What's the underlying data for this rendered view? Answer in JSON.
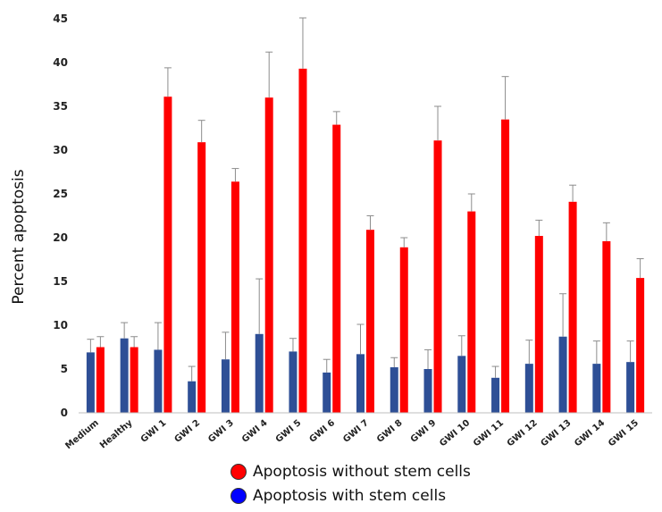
{
  "chart_data": {
    "type": "bar",
    "ylabel": "Percent apoptosis",
    "ylim": [
      0,
      45
    ],
    "yticks": [
      0,
      5,
      10,
      15,
      20,
      25,
      30,
      35,
      40,
      45
    ],
    "grid": false,
    "legend_position": "bottom",
    "categories": [
      "Medium",
      "Healthy",
      "GWI 1",
      "GWI 2",
      "GWI 3",
      "GWI 4",
      "GWI 5",
      "GWI 6",
      "GWI 7",
      "GWI 8",
      "GWI 9",
      "GWI 10",
      "GWI 11",
      "GWI 12",
      "GWI 13",
      "GWI 14",
      "GWI 15"
    ],
    "series": [
      {
        "name": "Apoptosis with stem cells",
        "color": "#2e4f96",
        "values": [
          6.9,
          8.5,
          7.2,
          3.6,
          6.1,
          9.0,
          7.0,
          4.6,
          6.7,
          5.2,
          5.0,
          6.5,
          4.0,
          5.6,
          8.7,
          5.6,
          5.8
        ],
        "errors": [
          1.5,
          1.8,
          3.1,
          1.7,
          3.1,
          6.3,
          1.5,
          1.5,
          3.4,
          1.1,
          2.2,
          2.3,
          1.3,
          2.7,
          4.9,
          2.6,
          2.4
        ]
      },
      {
        "name": "Apoptosis without stem cells",
        "color": "#ff0000",
        "values": [
          7.5,
          7.5,
          36.1,
          30.9,
          26.4,
          36.0,
          39.3,
          32.9,
          20.9,
          18.9,
          31.1,
          23.0,
          33.5,
          20.2,
          24.1,
          19.6,
          15.4
        ],
        "errors": [
          1.2,
          1.2,
          3.3,
          2.5,
          1.5,
          5.2,
          5.8,
          1.5,
          1.6,
          1.1,
          3.9,
          2.0,
          4.9,
          1.8,
          1.9,
          2.1,
          2.2
        ]
      }
    ]
  },
  "legend": {
    "items": [
      {
        "label": "Apoptosis without stem cells",
        "color": "#ff0000"
      },
      {
        "label": "Apoptosis with stem cells",
        "color": "#0000ff"
      }
    ]
  }
}
